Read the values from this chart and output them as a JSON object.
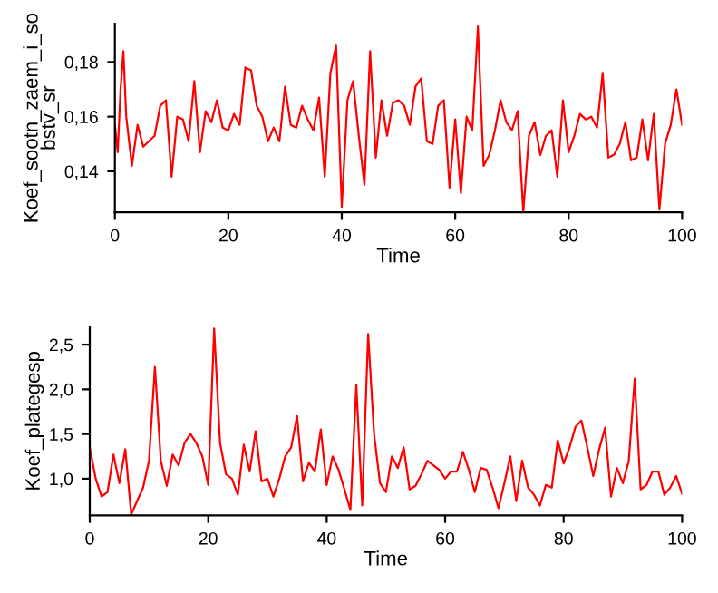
{
  "chart_data": [
    {
      "type": "line",
      "xlabel": "Time",
      "ylabel": "Koef_sootn_zaem_i_sobstv_sr",
      "xlim": [
        0,
        100
      ],
      "xticks": [
        0,
        20,
        40,
        60,
        80,
        100
      ],
      "ylim": [
        0.125,
        0.194
      ],
      "yticks": [
        {
          "value": 0.14,
          "label": "0,14"
        },
        {
          "value": 0.16,
          "label": "0,16"
        },
        {
          "value": 0.18,
          "label": "0,18"
        }
      ],
      "grid": false,
      "series": [
        {
          "color": "#ff0000",
          "x": [
            0,
            0.5,
            1,
            1.5,
            2,
            3,
            4,
            5,
            6,
            7,
            8,
            9,
            10,
            11,
            12,
            13,
            14,
            15,
            16,
            17,
            18,
            19,
            20,
            21,
            22,
            23,
            24,
            25,
            26,
            27,
            28,
            29,
            30,
            31,
            32,
            33,
            34,
            35,
            36,
            37,
            38,
            39,
            40,
            41,
            42,
            43,
            44,
            45,
            46,
            47,
            48,
            49,
            50,
            51,
            52,
            53,
            54,
            55,
            56,
            57,
            58,
            59,
            60,
            61,
            62,
            63,
            64,
            65,
            66,
            67,
            68,
            69,
            70,
            71,
            72,
            73,
            74,
            75,
            76,
            77,
            78,
            79,
            80,
            81,
            82,
            83,
            84,
            85,
            86,
            87,
            88,
            89,
            90,
            91,
            92,
            93,
            94,
            95,
            96,
            97,
            98,
            99,
            100
          ],
          "values": [
            0.157,
            0.147,
            0.17,
            0.184,
            0.16,
            0.142,
            0.157,
            0.149,
            0.151,
            0.153,
            0.164,
            0.166,
            0.138,
            0.16,
            0.159,
            0.151,
            0.173,
            0.147,
            0.162,
            0.158,
            0.166,
            0.156,
            0.155,
            0.161,
            0.157,
            0.178,
            0.177,
            0.164,
            0.16,
            0.151,
            0.156,
            0.151,
            0.171,
            0.157,
            0.156,
            0.164,
            0.159,
            0.155,
            0.167,
            0.138,
            0.176,
            0.186,
            0.127,
            0.166,
            0.173,
            0.153,
            0.135,
            0.184,
            0.145,
            0.166,
            0.153,
            0.165,
            0.166,
            0.164,
            0.157,
            0.171,
            0.174,
            0.151,
            0.15,
            0.164,
            0.166,
            0.134,
            0.159,
            0.132,
            0.16,
            0.155,
            0.193,
            0.142,
            0.146,
            0.155,
            0.166,
            0.158,
            0.155,
            0.162,
            0.125,
            0.153,
            0.158,
            0.146,
            0.153,
            0.155,
            0.138,
            0.166,
            0.147,
            0.153,
            0.161,
            0.159,
            0.16,
            0.156,
            0.176,
            0.145,
            0.146,
            0.15,
            0.158,
            0.144,
            0.145,
            0.159,
            0.144,
            0.161,
            0.126,
            0.15,
            0.157,
            0.17,
            0.157
          ]
        }
      ]
    },
    {
      "type": "line",
      "xlabel": "Time",
      "ylabel": "Koef_plategesp",
      "xlim": [
        0,
        100
      ],
      "xticks": [
        0,
        20,
        40,
        60,
        80,
        100
      ],
      "ylim": [
        0.59,
        2.7
      ],
      "yticks": [
        {
          "value": 1.0,
          "label": "1,0"
        },
        {
          "value": 1.5,
          "label": "1,5"
        },
        {
          "value": 2.0,
          "label": "2,0"
        },
        {
          "value": 2.5,
          "label": "2,5"
        }
      ],
      "grid": false,
      "series": [
        {
          "color": "#ff0000",
          "x": [
            0,
            1,
            2,
            3,
            4,
            5,
            6,
            7,
            8,
            9,
            10,
            11,
            12,
            13,
            14,
            15,
            16,
            17,
            18,
            19,
            20,
            21,
            22,
            23,
            24,
            25,
            26,
            27,
            28,
            29,
            30,
            31,
            32,
            33,
            34,
            35,
            36,
            37,
            38,
            39,
            40,
            41,
            42,
            43,
            44,
            45,
            46,
            47,
            48,
            49,
            50,
            51,
            52,
            53,
            54,
            55,
            56,
            57,
            58,
            59,
            60,
            61,
            62,
            63,
            64,
            65,
            66,
            67,
            68,
            69,
            70,
            71,
            72,
            73,
            74,
            75,
            76,
            77,
            78,
            79,
            80,
            81,
            82,
            83,
            84,
            85,
            86,
            87,
            88,
            89,
            90,
            91,
            92,
            93,
            94,
            95,
            96,
            97,
            98,
            99,
            100
          ],
          "values": [
            1.35,
            1.0,
            0.8,
            0.85,
            1.27,
            0.95,
            1.33,
            0.6,
            0.75,
            0.9,
            1.2,
            2.25,
            1.2,
            0.92,
            1.27,
            1.15,
            1.4,
            1.5,
            1.4,
            1.25,
            0.93,
            2.68,
            1.4,
            1.05,
            1.0,
            0.82,
            1.38,
            1.08,
            1.53,
            0.97,
            1.0,
            0.8,
            1.0,
            1.25,
            1.35,
            1.7,
            0.97,
            1.18,
            1.08,
            1.55,
            0.93,
            1.25,
            1.1,
            0.88,
            0.65,
            2.05,
            0.7,
            2.62,
            1.5,
            0.95,
            0.85,
            1.25,
            1.12,
            1.35,
            0.88,
            0.92,
            1.05,
            1.2,
            1.15,
            1.1,
            1.0,
            1.08,
            1.08,
            1.3,
            1.1,
            0.85,
            1.12,
            1.1,
            0.9,
            0.67,
            0.95,
            1.25,
            0.75,
            1.2,
            0.9,
            0.82,
            0.7,
            0.93,
            0.9,
            1.43,
            1.17,
            1.35,
            1.58,
            1.65,
            1.35,
            1.03,
            1.33,
            1.57,
            0.8,
            1.12,
            0.95,
            1.2,
            2.12,
            0.88,
            0.93,
            1.08,
            1.08,
            0.82,
            0.9,
            1.03,
            0.83
          ]
        }
      ]
    }
  ]
}
